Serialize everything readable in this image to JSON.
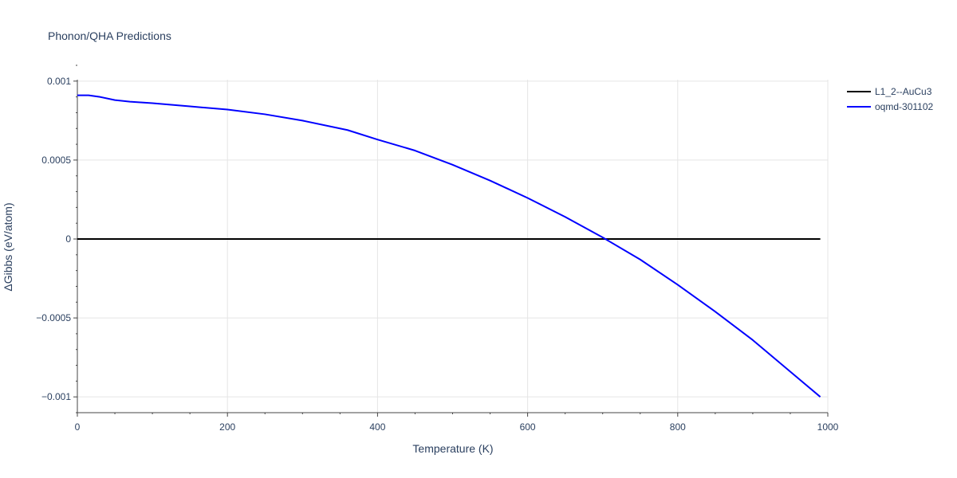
{
  "chart_data": {
    "type": "line",
    "title": "Phonon/QHA Predictions",
    "xlabel": "Temperature (K)",
    "ylabel": "ΔGibbs (eV/atom)",
    "xlim": [
      0,
      1000
    ],
    "ylim": [
      -0.0011,
      0.0011
    ],
    "xticks": [
      0,
      200,
      400,
      600,
      800,
      1000
    ],
    "xtick_labels": [
      "0",
      "200",
      "400",
      "600",
      "800",
      "1000"
    ],
    "yticks": [
      0.001,
      0.0005,
      0,
      -0.0005,
      -0.001
    ],
    "ytick_labels": [
      "0.001",
      "0.0005",
      "0",
      "−0.0005",
      "−0.001"
    ],
    "grid": true,
    "legend_position": "top-right",
    "series": [
      {
        "name": "L1_2--AuCu3",
        "color": "#000000",
        "x": [
          0,
          990
        ],
        "y": [
          0,
          0
        ]
      },
      {
        "name": "oqmd-301102",
        "color": "#0000ff",
        "x": [
          0,
          15,
          30,
          50,
          70,
          100,
          150,
          200,
          250,
          300,
          360,
          400,
          450,
          500,
          550,
          600,
          650,
          700,
          750,
          800,
          850,
          900,
          950,
          990
        ],
        "y": [
          0.00091,
          0.00091,
          0.0009,
          0.00088,
          0.00087,
          0.00086,
          0.00084,
          0.00082,
          0.00079,
          0.00075,
          0.00069,
          0.00063,
          0.00056,
          0.00047,
          0.00037,
          0.00026,
          0.00014,
          1e-05,
          -0.00013,
          -0.00029,
          -0.00046,
          -0.00064,
          -0.00084,
          -0.001
        ]
      }
    ]
  }
}
